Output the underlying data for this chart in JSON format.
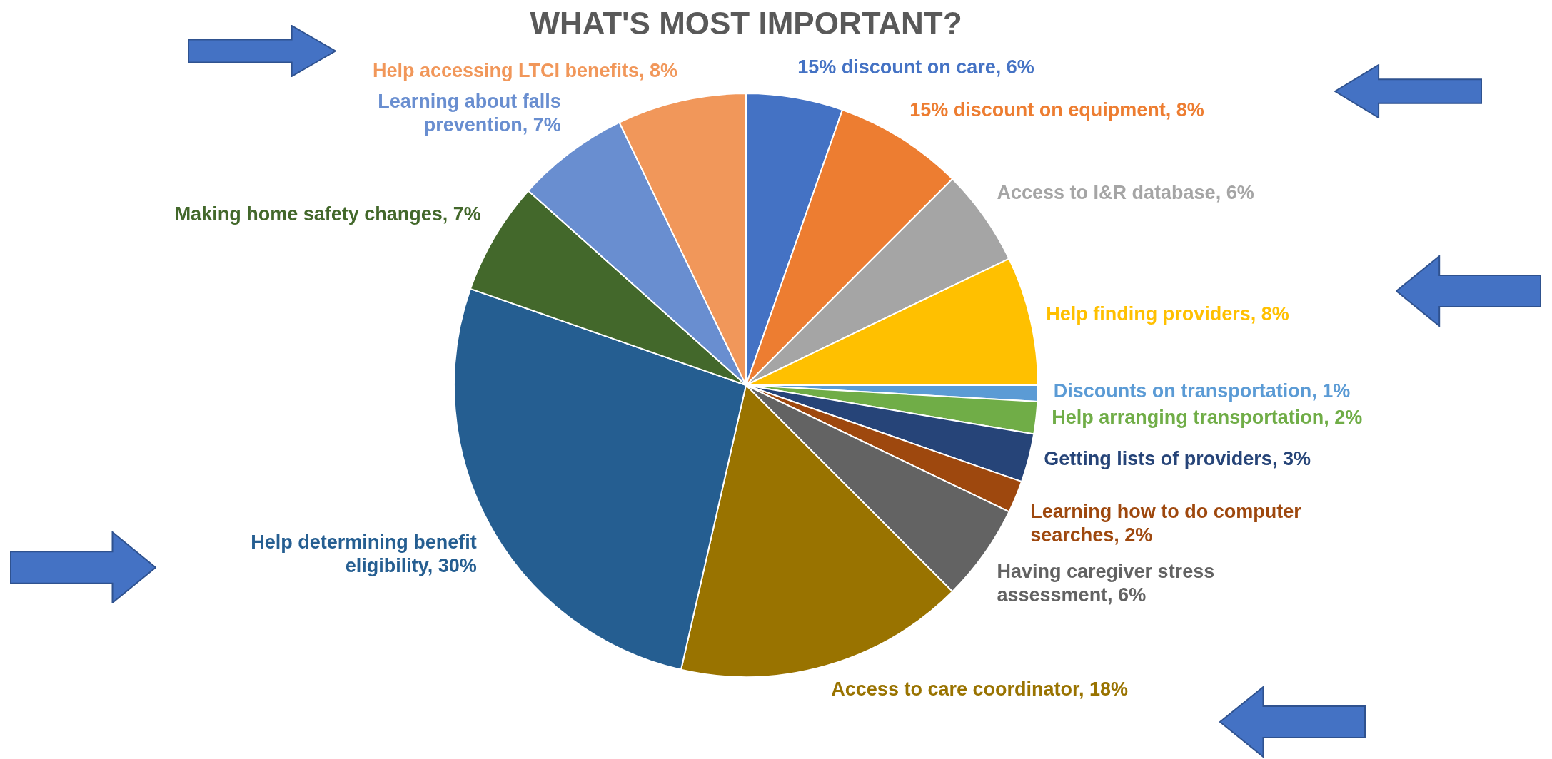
{
  "chart_data": {
    "type": "pie",
    "title": "WHAT'S MOST IMPORTANT?",
    "categories": [
      "15% discount on care",
      "15% discount on equipment",
      "Access to I&R database",
      "Help finding providers",
      "Discounts on transportation",
      "Help arranging transportation",
      "Getting lists of providers",
      "Learning how to do computer searches",
      "Having caregiver stress assessment",
      "Access to care coordinator",
      "Help determining benefit eligibility",
      "Making home safety changes",
      "Learning about falls prevention",
      "Help accessing LTCI benefits"
    ],
    "values": [
      6,
      8,
      6,
      8,
      1,
      2,
      3,
      2,
      6,
      18,
      30,
      7,
      7,
      8
    ],
    "value_labels": [
      "6%",
      "8%",
      "6%",
      "8%",
      "1%",
      "2%",
      "3%",
      "2%",
      "6%",
      "18%",
      "30%",
      "7%",
      "7%",
      "8%"
    ],
    "colors": [
      "#4472c4",
      "#ed7d31",
      "#a5a5a5",
      "#ffc000",
      "#5b9bd5",
      "#70ad47",
      "#264478",
      "#9e480e",
      "#636363",
      "#997300",
      "#255e91",
      "#43682b",
      "#698ed0",
      "#f1975a"
    ]
  }
}
